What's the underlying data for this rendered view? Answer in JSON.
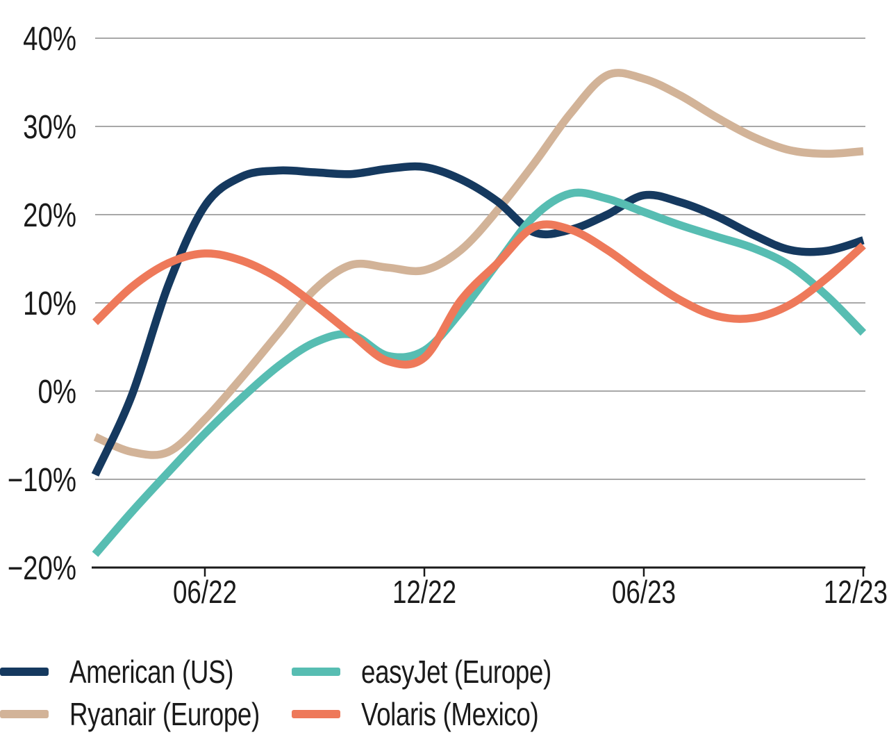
{
  "chart_data": {
    "type": "line",
    "title": "",
    "xlabel": "",
    "ylabel": "",
    "n_points": 22,
    "x_tick_labels": [
      {
        "index": 3,
        "label": "06/22"
      },
      {
        "index": 9,
        "label": "12/22"
      },
      {
        "index": 15,
        "label": "06/23"
      },
      {
        "index": 21,
        "label": "12/23"
      }
    ],
    "y_axis": {
      "min": -20,
      "max": 40,
      "tick_step": 10,
      "tick_labels": [
        "40%",
        "30%",
        "20%",
        "10%",
        "0%",
        "−10%",
        "−20%"
      ],
      "tick_values": [
        40,
        30,
        20,
        10,
        0,
        -10,
        -20
      ]
    },
    "grid": {
      "gridline_color": "#8C8C8C",
      "axis_color": "#1A1A1A",
      "grid_on": true
    },
    "legend_position": "bottom",
    "series": [
      {
        "name": "American (US)",
        "color": "#15395F",
        "values": [
          -9.5,
          -0.5,
          12.0,
          21.0,
          24.3,
          25.0,
          24.8,
          24.6,
          25.2,
          25.4,
          24.0,
          21.5,
          18.0,
          18.3,
          20.0,
          22.2,
          21.4,
          19.8,
          17.7,
          16.0,
          15.9,
          17.1
        ]
      },
      {
        "name": "Ryanair (Europe)",
        "color": "#D2B398",
        "values": [
          -5.2,
          -6.9,
          -6.9,
          -3.2,
          1.5,
          6.5,
          11.5,
          14.3,
          14.0,
          13.7,
          16.0,
          20.5,
          25.8,
          31.5,
          35.8,
          35.4,
          33.5,
          31.0,
          28.8,
          27.3,
          26.9,
          27.2
        ]
      },
      {
        "name": "easyJet (Europe)",
        "color": "#57BDB2",
        "values": [
          -18.5,
          -13.7,
          -9.2,
          -4.8,
          -0.8,
          2.8,
          5.5,
          6.4,
          4.0,
          4.6,
          9.0,
          14.5,
          19.8,
          22.4,
          21.8,
          20.3,
          18.8,
          17.5,
          16.2,
          14.2,
          10.8,
          6.6
        ]
      },
      {
        "name": "Volaris (Mexico)",
        "color": "#EE795A",
        "values": [
          7.8,
          11.8,
          14.5,
          15.6,
          14.8,
          12.8,
          9.8,
          6.5,
          3.4,
          3.8,
          10.3,
          14.5,
          18.6,
          18.3,
          16.0,
          13.0,
          10.3,
          8.5,
          8.3,
          9.8,
          12.8,
          16.5
        ]
      }
    ],
    "draw_order": [
      1,
      0,
      2,
      3
    ],
    "line_width": 11.5
  }
}
